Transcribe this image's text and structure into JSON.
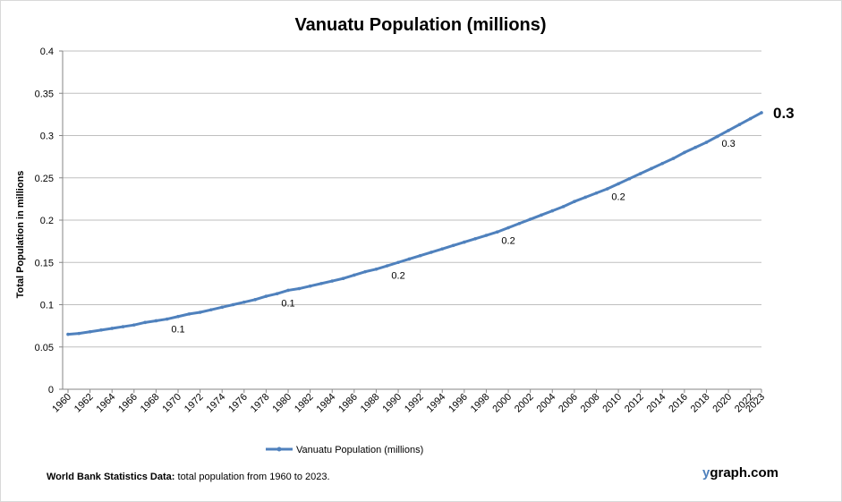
{
  "chart_data": {
    "type": "line",
    "title": "Vanuatu Population (millions)",
    "xlabel": "",
    "ylabel": "Total Population  in millions",
    "ylim": [
      0,
      0.4
    ],
    "yticks": [
      "0",
      "0.05",
      "0.1",
      "0.15",
      "0.2",
      "0.25",
      "0.3",
      "0.35",
      "0.4"
    ],
    "grid": true,
    "legend_position": "bottom",
    "series_color": "#4f81bd",
    "x": [
      1960,
      1961,
      1962,
      1963,
      1964,
      1965,
      1966,
      1967,
      1968,
      1969,
      1970,
      1971,
      1972,
      1973,
      1974,
      1975,
      1976,
      1977,
      1978,
      1979,
      1980,
      1981,
      1982,
      1983,
      1984,
      1985,
      1986,
      1987,
      1988,
      1989,
      1990,
      1991,
      1992,
      1993,
      1994,
      1995,
      1996,
      1997,
      1998,
      1999,
      2000,
      2001,
      2002,
      2003,
      2004,
      2005,
      2006,
      2007,
      2008,
      2009,
      2010,
      2011,
      2012,
      2013,
      2014,
      2015,
      2016,
      2017,
      2018,
      2019,
      2020,
      2021,
      2022,
      2023
    ],
    "xtick_labels": [
      "1960",
      "1962",
      "1964",
      "1966",
      "1968",
      "1970",
      "1972",
      "1974",
      "1976",
      "1978",
      "1980",
      "1982",
      "1984",
      "1986",
      "1988",
      "1990",
      "1992",
      "1994",
      "1996",
      "1998",
      "2000",
      "2002",
      "2004",
      "2006",
      "2008",
      "2010",
      "2012",
      "2014",
      "2016",
      "2018",
      "2020",
      "2022",
      "2023"
    ],
    "series": [
      {
        "name": "Vanuatu Population (millions)",
        "values": [
          0.065,
          0.066,
          0.068,
          0.07,
          0.072,
          0.074,
          0.076,
          0.079,
          0.081,
          0.083,
          0.086,
          0.089,
          0.091,
          0.094,
          0.097,
          0.1,
          0.103,
          0.106,
          0.11,
          0.113,
          0.117,
          0.119,
          0.122,
          0.125,
          0.128,
          0.131,
          0.135,
          0.139,
          0.142,
          0.146,
          0.15,
          0.154,
          0.158,
          0.162,
          0.166,
          0.17,
          0.174,
          0.178,
          0.182,
          0.186,
          0.191,
          0.196,
          0.201,
          0.206,
          0.211,
          0.216,
          0.222,
          0.227,
          0.232,
          0.237,
          0.243,
          0.249,
          0.255,
          0.261,
          0.267,
          0.273,
          0.28,
          0.286,
          0.292,
          0.299,
          0.306,
          0.313,
          0.32,
          0.327
        ]
      }
    ],
    "data_labels": [
      {
        "x": 1970,
        "text": "0.1"
      },
      {
        "x": 1980,
        "text": "0.1"
      },
      {
        "x": 1990,
        "text": "0.2"
      },
      {
        "x": 2000,
        "text": "0.2"
      },
      {
        "x": 2010,
        "text": "0.2"
      },
      {
        "x": 2020,
        "text": "0.3"
      }
    ],
    "end_label": "0.3"
  },
  "footer": {
    "source_bold": "World Bank Statistics Data:",
    "source_text": " total population from 1960 to 2023."
  },
  "brand": {
    "prefix": "y",
    "rest": "graph.com"
  }
}
